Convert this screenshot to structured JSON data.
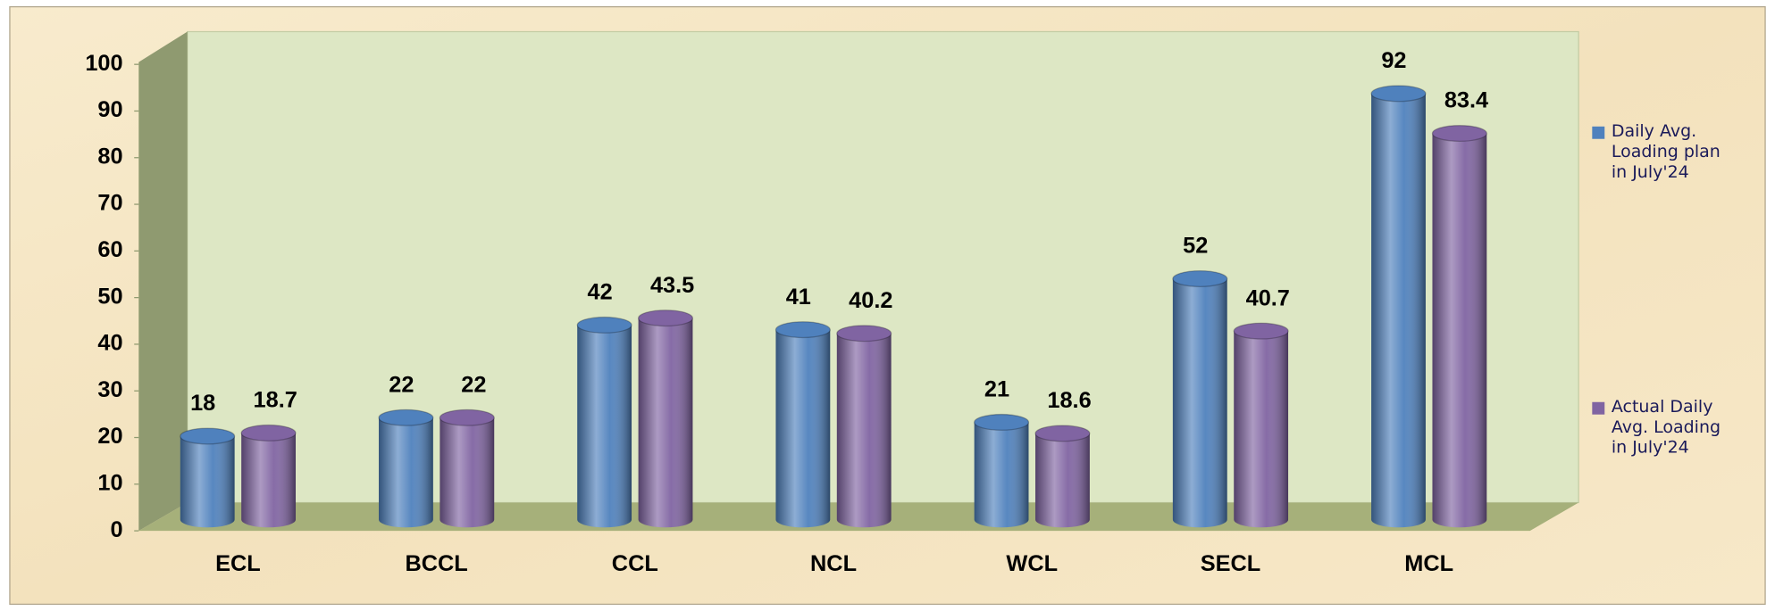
{
  "chart_data": {
    "type": "bar",
    "categories": [
      "ECL",
      "BCCL",
      "CCL",
      "NCL",
      "WCL",
      "SECL",
      "MCL"
    ],
    "series": [
      {
        "name": "Daily Avg. Loading plan in July'24",
        "color": "#4f81bd",
        "values": [
          18,
          22,
          42,
          41,
          21,
          52,
          92
        ]
      },
      {
        "name": "Actual Daily Avg. Loading in July'24",
        "color": "#8064a2",
        "values": [
          18.7,
          22,
          43.5,
          40.2,
          18.6,
          40.7,
          83.4
        ]
      }
    ],
    "ylim": [
      0,
      100
    ],
    "yticks": [
      0,
      10,
      20,
      30,
      40,
      50,
      60,
      70,
      80,
      90,
      100
    ],
    "legend": "right"
  }
}
